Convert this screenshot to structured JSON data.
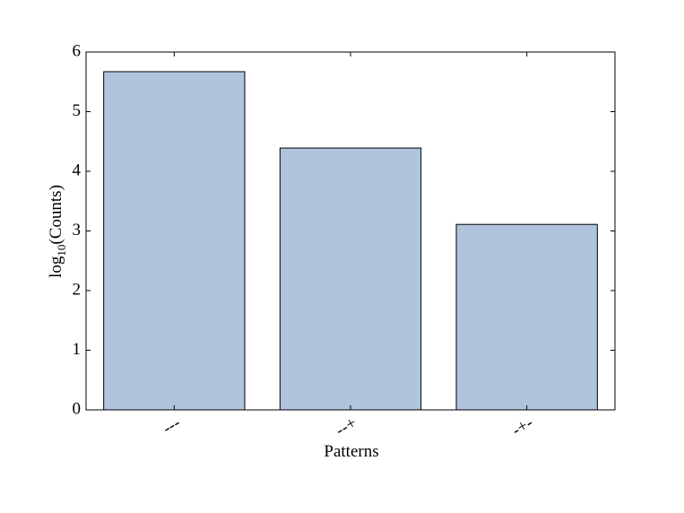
{
  "chart_data": {
    "type": "bar",
    "ylabel": {
      "base": "log",
      "sub": "10",
      "rest": "(Counts)"
    },
    "xlabel": "Patterns",
    "categories": [
      "---",
      "--+",
      "-+-"
    ],
    "values": [
      5.67,
      4.39,
      3.11
    ],
    "color": "#b0c4de",
    "ylim": [
      0,
      6
    ],
    "yticks": [
      0,
      1,
      2,
      3,
      4,
      5,
      6
    ],
    "grid": false
  }
}
